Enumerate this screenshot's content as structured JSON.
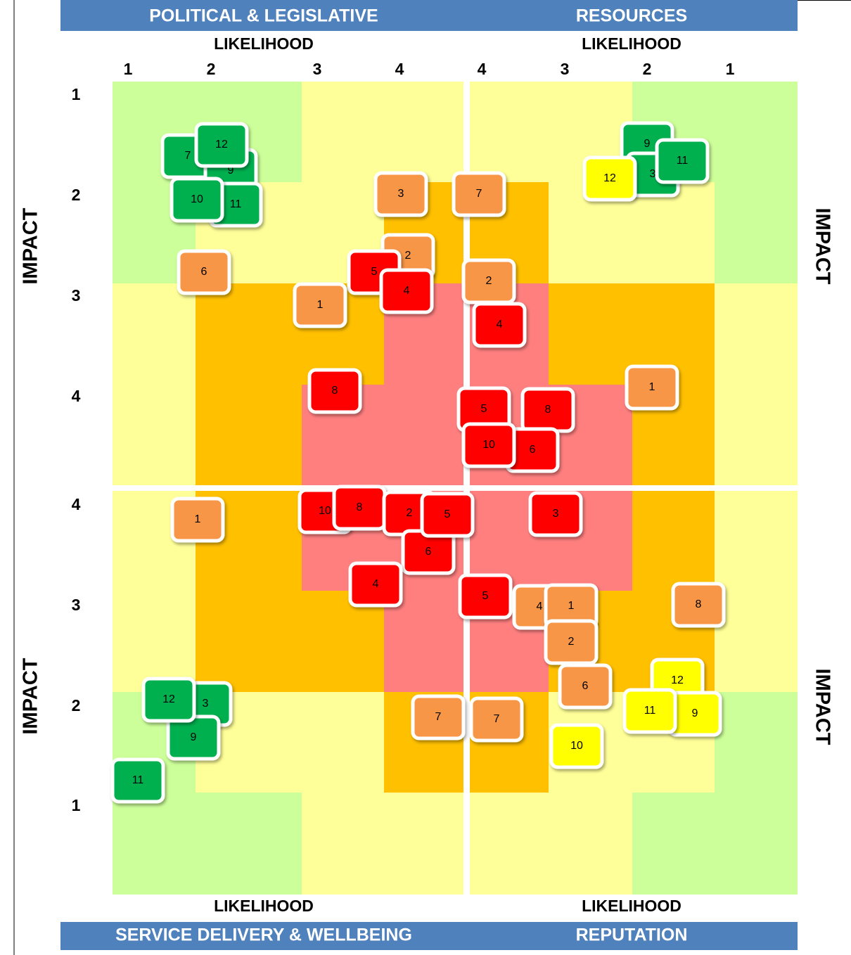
{
  "quadrants": [
    {
      "title": "POLITICAL & LEGISLATIVE",
      "likelihood_label": "LIKELIHOOD",
      "impact_label": "IMPACT",
      "likelihood_ticks": [
        1,
        2,
        3,
        4
      ],
      "impact_ticks": [
        1,
        2,
        3,
        4
      ],
      "risks": [
        {
          "label": 7,
          "color": "#00b050"
        },
        {
          "label": 9,
          "color": "#00b050"
        },
        {
          "label": 12,
          "color": "#00b050"
        },
        {
          "label": 11,
          "color": "#00b050"
        },
        {
          "label": 10,
          "color": "#00b050"
        },
        {
          "label": 6,
          "color": "#f79646"
        },
        {
          "label": 3,
          "color": "#f79646"
        },
        {
          "label": 2,
          "color": "#f79646"
        },
        {
          "label": 5,
          "color": "#ff0000"
        },
        {
          "label": 4,
          "color": "#ff0000"
        },
        {
          "label": 1,
          "color": "#f79646"
        },
        {
          "label": 8,
          "color": "#ff0000"
        }
      ]
    },
    {
      "title": "RESOURCES",
      "likelihood_label": "LIKELIHOOD",
      "impact_label": "IMPACT",
      "likelihood_ticks": [
        4,
        3,
        2,
        1
      ],
      "risks": [
        {
          "label": 7,
          "color": "#f79646"
        },
        {
          "label": 2,
          "color": "#f79646"
        },
        {
          "label": 4,
          "color": "#ff0000"
        },
        {
          "label": 9,
          "color": "#00b050"
        },
        {
          "label": 3,
          "color": "#00b050"
        },
        {
          "label": 11,
          "color": "#00b050"
        },
        {
          "label": 12,
          "color": "#ffff00"
        },
        {
          "label": 1,
          "color": "#f79646"
        },
        {
          "label": 5,
          "color": "#ff0000"
        },
        {
          "label": 8,
          "color": "#ff0000"
        },
        {
          "label": 6,
          "color": "#ff0000"
        },
        {
          "label": 10,
          "color": "#ff0000"
        }
      ]
    },
    {
      "title": "SERVICE DELIVERY & WELLBEING",
      "likelihood_label": "LIKELIHOOD",
      "impact_label": "IMPACT",
      "impact_ticks": [
        4,
        3,
        2,
        1
      ],
      "risks": [
        {
          "label": 1,
          "color": "#f79646"
        },
        {
          "label": 10,
          "color": "#ff0000"
        },
        {
          "label": 8,
          "color": "#ff0000"
        },
        {
          "label": 2,
          "color": "#ff0000"
        },
        {
          "label": 6,
          "color": "#ff0000"
        },
        {
          "label": 5,
          "color": "#ff0000"
        },
        {
          "label": 4,
          "color": "#ff0000"
        },
        {
          "label": 3,
          "color": "#00b050"
        },
        {
          "label": 9,
          "color": "#00b050"
        },
        {
          "label": 12,
          "color": "#00b050"
        },
        {
          "label": 11,
          "color": "#00b050"
        },
        {
          "label": 7,
          "color": "#f79646"
        }
      ]
    },
    {
      "title": "REPUTATION",
      "likelihood_label": "LIKELIHOOD",
      "impact_label": "IMPACT",
      "risks": [
        {
          "label": 3,
          "color": "#ff0000"
        },
        {
          "label": 5,
          "color": "#ff0000"
        },
        {
          "label": 4,
          "color": "#f79646"
        },
        {
          "label": 1,
          "color": "#f79646"
        },
        {
          "label": 2,
          "color": "#f79646"
        },
        {
          "label": 8,
          "color": "#f79646"
        },
        {
          "label": 6,
          "color": "#f79646"
        },
        {
          "label": 12,
          "color": "#ffff00"
        },
        {
          "label": 9,
          "color": "#ffff00"
        },
        {
          "label": 11,
          "color": "#ffff00"
        },
        {
          "label": 7,
          "color": "#f79646"
        },
        {
          "label": 10,
          "color": "#ffff00"
        }
      ]
    }
  ]
}
